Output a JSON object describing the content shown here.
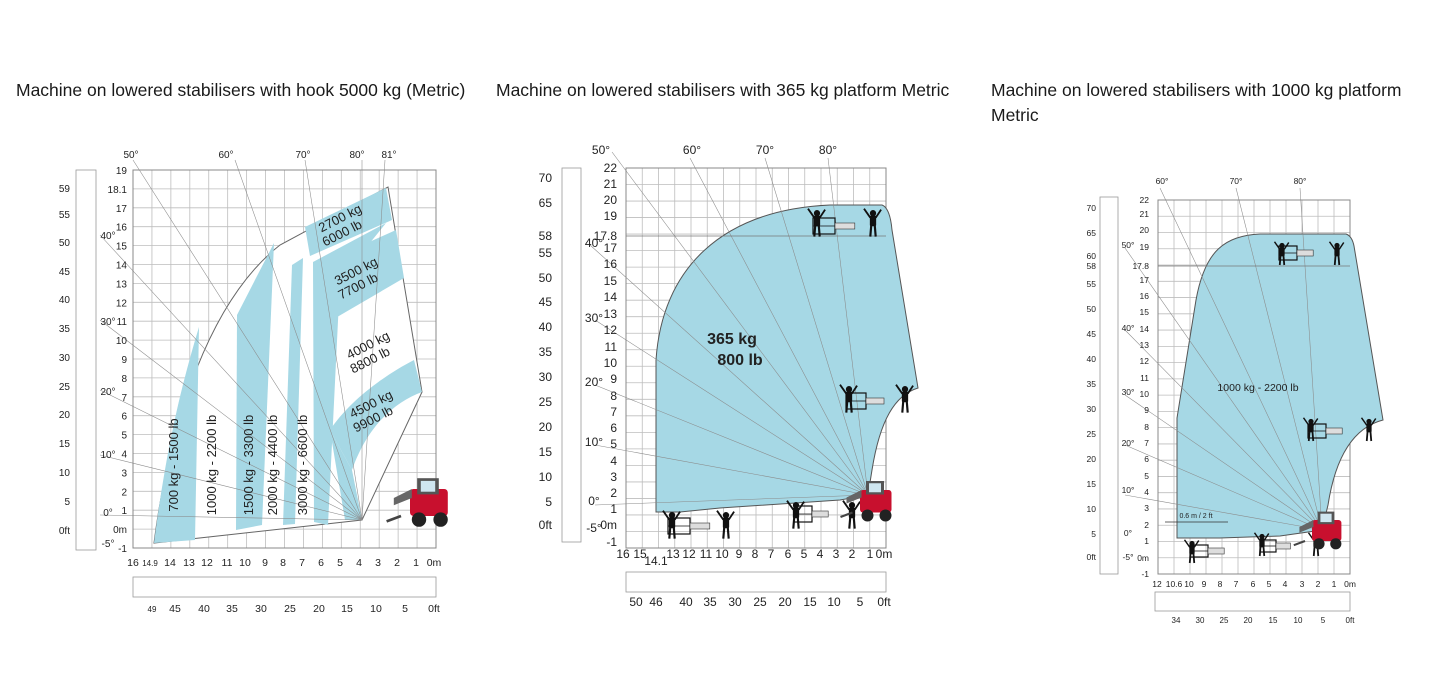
{
  "charts": [
    {
      "title": "Machine on lowered stabilisers with hook 5000 kg (Metric)",
      "y_m_ticks": [
        "19",
        "18.1",
        "17",
        "16",
        "15",
        "14",
        "13",
        "12",
        "11",
        "10",
        "9",
        "8",
        "7",
        "6",
        "5",
        "4",
        "3",
        "2",
        "1",
        "0m",
        "-1"
      ],
      "y_ft_ticks": [
        "59",
        "55",
        "50",
        "45",
        "40",
        "35",
        "30",
        "25",
        "20",
        "15",
        "10",
        "5",
        "0ft"
      ],
      "angle_left": [
        "40°",
        "30°",
        "20°",
        "10°",
        "0°",
        "-5°"
      ],
      "angle_top": [
        "50°",
        "60°",
        "70°",
        "80°",
        "81°"
      ],
      "x_m_ticks": [
        "16",
        "14.9",
        "14",
        "13",
        "12",
        "11",
        "10",
        "9",
        "8",
        "7",
        "6",
        "5",
        "4",
        "3",
        "2",
        "1",
        "0m"
      ],
      "x_ft_ticks": [
        "49",
        "45",
        "40",
        "35",
        "30",
        "25",
        "20",
        "15",
        "10",
        "5",
        "0ft"
      ],
      "load_labels": [
        "700 kg - 1500 lb",
        "1000 kg - 2200 lb",
        "1500 kg - 3300 lb",
        "2000 kg - 4400 lb",
        "3000 kg - 6600 lb"
      ],
      "arc_labels": [
        [
          "2700 kg",
          "6000 lb"
        ],
        [
          "3500 kg",
          "7700 lb"
        ],
        [
          "4000 kg",
          "8800 lb"
        ],
        [
          "4500 kg",
          "9900 lb"
        ]
      ]
    },
    {
      "title": "Machine on lowered stabilisers with 365 kg platform Metric",
      "y_m_ticks": [
        "22",
        "21",
        "20",
        "19",
        "17.8",
        "17",
        "16",
        "15",
        "14",
        "13",
        "12",
        "11",
        "10",
        "9",
        "8",
        "7",
        "6",
        "5",
        "4",
        "3",
        "2",
        "1",
        "0m",
        "-1"
      ],
      "y_ft_ticks": [
        "70",
        "65",
        "58",
        "55",
        "50",
        "45",
        "40",
        "35",
        "30",
        "25",
        "20",
        "15",
        "10",
        "5",
        "0ft"
      ],
      "angle_left": [
        "40°",
        "30°",
        "20°",
        "10°",
        "0°",
        "-5°"
      ],
      "angle_top": [
        "50°",
        "60°",
        "70°",
        "80°"
      ],
      "x_m_ticks": [
        "16",
        "15",
        "14.1",
        "13",
        "12",
        "11",
        "10",
        "9",
        "8",
        "7",
        "6",
        "5",
        "4",
        "3",
        "2",
        "1",
        "0m"
      ],
      "x_ft_ticks": [
        "50",
        "46",
        "40",
        "35",
        "30",
        "25",
        "20",
        "15",
        "10",
        "5",
        "0ft"
      ],
      "zone_label": [
        "365 kg",
        "800 lb"
      ]
    },
    {
      "title": "Machine on lowered stabilisers with 1000 kg platform Metric",
      "y_m_ticks": [
        "22",
        "21",
        "20",
        "19",
        "17.8",
        "17",
        "16",
        "15",
        "14",
        "13",
        "12",
        "11",
        "10",
        "9",
        "8",
        "7",
        "6",
        "5",
        "4",
        "3",
        "2",
        "1",
        "0m",
        "-1"
      ],
      "y_ft_ticks": [
        "70",
        "65",
        "60",
        "58",
        "55",
        "50",
        "45",
        "40",
        "35",
        "30",
        "25",
        "20",
        "15",
        "10",
        "5",
        "0ft"
      ],
      "angle_left": [
        "50°",
        "40°",
        "30°",
        "20°",
        "10°",
        "0°",
        "-5°"
      ],
      "angle_top": [
        "60°",
        "70°",
        "80°"
      ],
      "x_m_ticks": [
        "12",
        "10.6",
        "10",
        "9",
        "8",
        "7",
        "6",
        "5",
        "4",
        "3",
        "2",
        "1",
        "0m"
      ],
      "x_ft_ticks": [
        "34",
        "30",
        "25",
        "20",
        "15",
        "10",
        "5",
        "0ft"
      ],
      "zone_label": "1000 kg - 2200 lb",
      "note": "0.6 m / 2 ft"
    }
  ],
  "colors": {
    "zone": "#a6d8e5",
    "machine": "#c8102e",
    "grid": "#bdbdbd"
  }
}
